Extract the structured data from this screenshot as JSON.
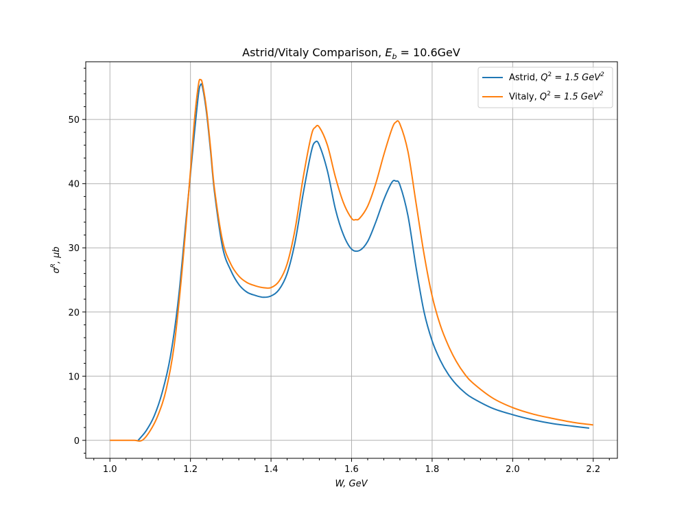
{
  "chart_data": {
    "type": "line",
    "title": "Astrid/Vitaly Comparison, E_b = 10.6GeV",
    "title_parts": {
      "main": "Astrid/Vitaly Comparison, ",
      "math": "E",
      "sub": "b",
      "rest": " = 10.6GeV"
    },
    "xlabel": "W, GeV",
    "ylabel": "σR, μb",
    "ylabel_parts": {
      "sym": "σ",
      "sup": "R",
      "rest": ", μb"
    },
    "xlim": [
      0.94,
      2.26
    ],
    "ylim": [
      -2.8,
      59
    ],
    "xticks": [
      1.0,
      1.2,
      1.4,
      1.6,
      1.8,
      2.0,
      2.2
    ],
    "xtick_labels": [
      "1.0",
      "1.2",
      "1.4",
      "1.6",
      "1.8",
      "2.0",
      "2.2"
    ],
    "yticks": [
      0,
      10,
      20,
      30,
      40,
      50
    ],
    "ytick_labels": [
      "0",
      "10",
      "20",
      "30",
      "40",
      "50"
    ],
    "grid": true,
    "legend_position": "top-right",
    "series": [
      {
        "name": "Astrid, Q² = 1.5 GeV²",
        "label_parts": {
          "prefix": "Astrid, ",
          "Q": "Q",
          "sup1": "2",
          "mid": " = 1.5 GeV",
          "sup2": "2"
        },
        "color": "#1f77b4",
        "points": [
          [
            1.07,
            0
          ],
          [
            1.09,
            1.5
          ],
          [
            1.11,
            3.8
          ],
          [
            1.13,
            7.5
          ],
          [
            1.15,
            13
          ],
          [
            1.17,
            22
          ],
          [
            1.19,
            35
          ],
          [
            1.21,
            48
          ],
          [
            1.22,
            54
          ],
          [
            1.225,
            55.4
          ],
          [
            1.23,
            55
          ],
          [
            1.24,
            51
          ],
          [
            1.25,
            45
          ],
          [
            1.26,
            38.5
          ],
          [
            1.28,
            30
          ],
          [
            1.3,
            26.5
          ],
          [
            1.32,
            24.3
          ],
          [
            1.34,
            23.1
          ],
          [
            1.36,
            22.6
          ],
          [
            1.38,
            22.3
          ],
          [
            1.4,
            22.5
          ],
          [
            1.42,
            23.5
          ],
          [
            1.44,
            26
          ],
          [
            1.46,
            31
          ],
          [
            1.48,
            38.5
          ],
          [
            1.5,
            45
          ],
          [
            1.51,
            46.5
          ],
          [
            1.52,
            46
          ],
          [
            1.54,
            42
          ],
          [
            1.56,
            36
          ],
          [
            1.58,
            32
          ],
          [
            1.6,
            29.8
          ],
          [
            1.62,
            29.6
          ],
          [
            1.64,
            31
          ],
          [
            1.66,
            34
          ],
          [
            1.68,
            37.5
          ],
          [
            1.7,
            40.2
          ],
          [
            1.71,
            40.4
          ],
          [
            1.72,
            39.8
          ],
          [
            1.74,
            35
          ],
          [
            1.76,
            27
          ],
          [
            1.78,
            20
          ],
          [
            1.8,
            15.5
          ],
          [
            1.82,
            12.5
          ],
          [
            1.84,
            10.3
          ],
          [
            1.86,
            8.7
          ],
          [
            1.88,
            7.5
          ],
          [
            1.9,
            6.6
          ],
          [
            1.95,
            5
          ],
          [
            2.0,
            4
          ],
          [
            2.05,
            3.2
          ],
          [
            2.1,
            2.6
          ],
          [
            2.15,
            2.2
          ],
          [
            2.19,
            1.9
          ]
        ]
      },
      {
        "name": "Vitaly, Q² = 1.5 GeV²",
        "label_parts": {
          "prefix": "Vitaly, ",
          "Q": "Q",
          "sup1": "2",
          "mid": " = 1.5 GeV",
          "sup2": "2"
        },
        "color": "#ff7f0e",
        "points": [
          [
            1.0,
            0
          ],
          [
            1.03,
            0
          ],
          [
            1.06,
            0
          ],
          [
            1.08,
            0
          ],
          [
            1.1,
            1.5
          ],
          [
            1.12,
            4
          ],
          [
            1.14,
            8
          ],
          [
            1.16,
            15
          ],
          [
            1.18,
            27
          ],
          [
            1.2,
            42
          ],
          [
            1.21,
            50
          ],
          [
            1.22,
            55.5
          ],
          [
            1.225,
            56.2
          ],
          [
            1.23,
            55.5
          ],
          [
            1.24,
            51.5
          ],
          [
            1.25,
            45.5
          ],
          [
            1.26,
            39
          ],
          [
            1.28,
            31
          ],
          [
            1.3,
            27.5
          ],
          [
            1.32,
            25.6
          ],
          [
            1.34,
            24.6
          ],
          [
            1.36,
            24.1
          ],
          [
            1.38,
            23.8
          ],
          [
            1.4,
            23.8
          ],
          [
            1.42,
            24.8
          ],
          [
            1.44,
            27.5
          ],
          [
            1.46,
            33
          ],
          [
            1.48,
            41
          ],
          [
            1.5,
            47.5
          ],
          [
            1.51,
            48.8
          ],
          [
            1.52,
            48.8
          ],
          [
            1.54,
            46
          ],
          [
            1.56,
            41
          ],
          [
            1.58,
            37
          ],
          [
            1.6,
            34.6
          ],
          [
            1.61,
            34.4
          ],
          [
            1.62,
            34.6
          ],
          [
            1.64,
            36.5
          ],
          [
            1.66,
            40
          ],
          [
            1.68,
            44.5
          ],
          [
            1.7,
            48.5
          ],
          [
            1.71,
            49.6
          ],
          [
            1.72,
            49.3
          ],
          [
            1.74,
            45
          ],
          [
            1.76,
            37
          ],
          [
            1.78,
            29
          ],
          [
            1.8,
            22.5
          ],
          [
            1.82,
            18
          ],
          [
            1.84,
            14.8
          ],
          [
            1.86,
            12.3
          ],
          [
            1.88,
            10.4
          ],
          [
            1.9,
            9
          ],
          [
            1.95,
            6.6
          ],
          [
            2.0,
            5.1
          ],
          [
            2.05,
            4.1
          ],
          [
            2.1,
            3.4
          ],
          [
            2.15,
            2.8
          ],
          [
            2.2,
            2.4
          ]
        ]
      }
    ]
  }
}
